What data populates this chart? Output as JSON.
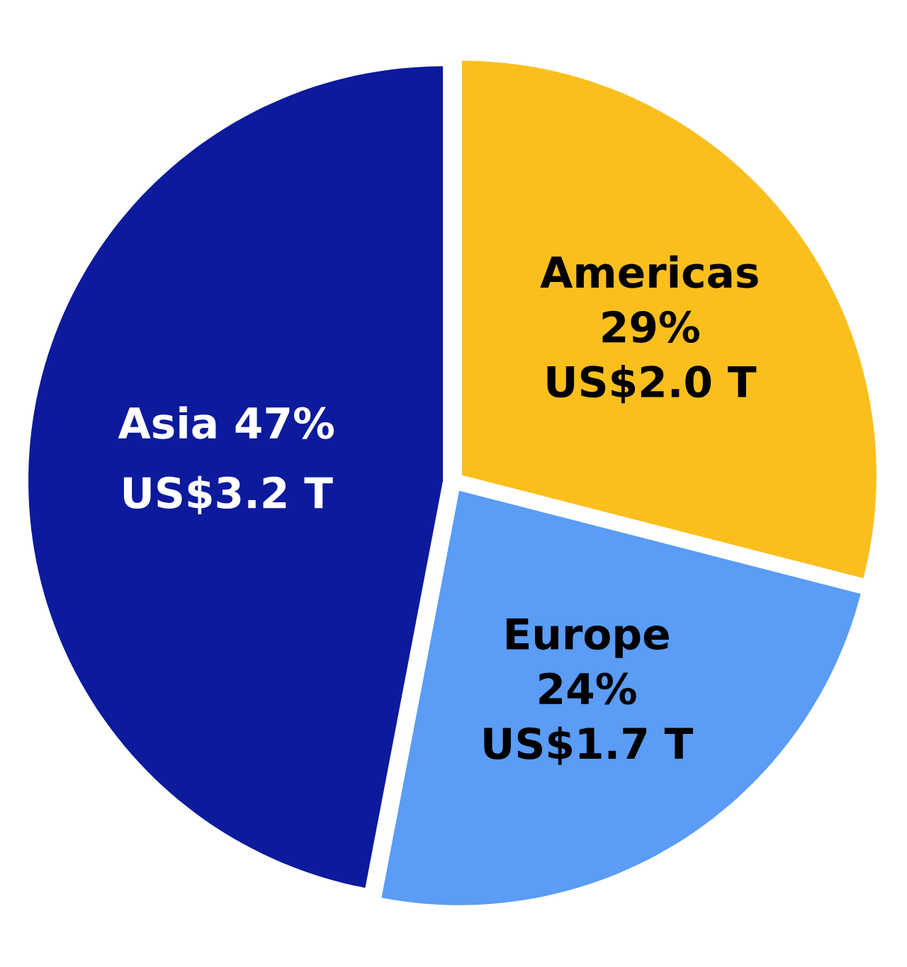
{
  "chart_data": {
    "type": "pie",
    "categories": [
      "Asia",
      "Americas",
      "Europe"
    ],
    "values": [
      47,
      29,
      24
    ],
    "colors": [
      "#0c1a9c",
      "#fbbf1d",
      "#5a9cf6"
    ],
    "value_labels": [
      "47%",
      "29%",
      "24%"
    ],
    "annotations": [
      "US$3.2 T",
      "US$2.0 T",
      "US$1.7 T"
    ]
  }
}
